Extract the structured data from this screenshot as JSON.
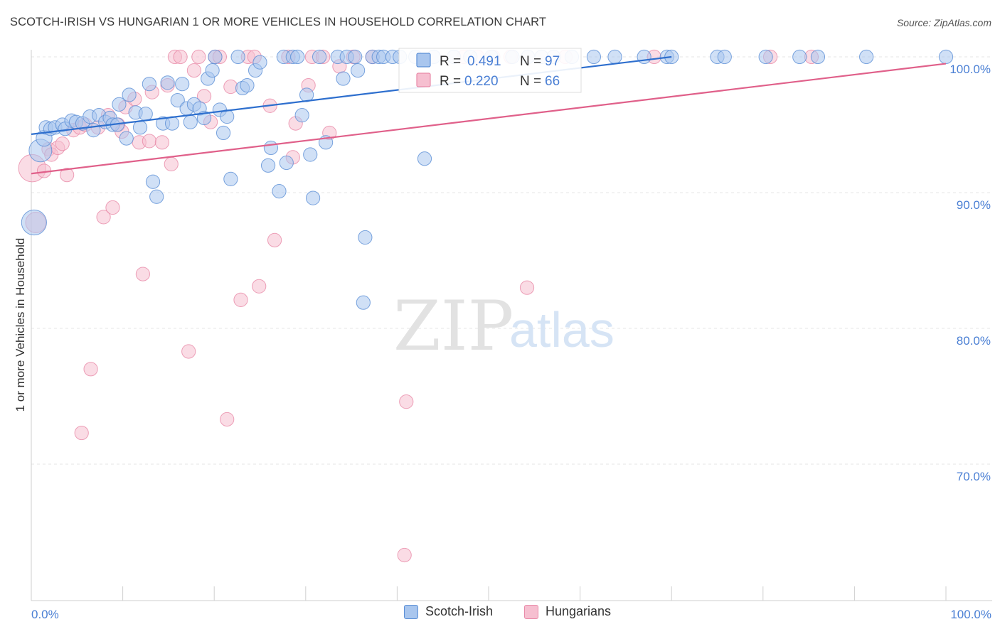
{
  "header": {
    "title": "SCOTCH-IRISH VS HUNGARIAN 1 OR MORE VEHICLES IN HOUSEHOLD CORRELATION CHART",
    "source": "Source: ZipAtlas.com"
  },
  "watermark": {
    "zip": "ZIP",
    "atlas": "atlas"
  },
  "colors": {
    "blue_fill": "#a9c6ee",
    "blue_stroke": "#5b8fd6",
    "blue_line": "#2e6fce",
    "pink_fill": "#f6bfd0",
    "pink_stroke": "#e98aa8",
    "pink_line": "#e0608a",
    "tick_text": "#4a7fd4",
    "grid": "#e6e6e6"
  },
  "legend_top": {
    "rows": [
      {
        "r_label": "R =",
        "r_value": "0.491",
        "n_label": "N =",
        "n_value": "97"
      },
      {
        "r_label": "R =",
        "r_value": "0.220",
        "n_label": "N =",
        "n_value": "66"
      }
    ]
  },
  "legend_bottom": {
    "items": [
      "Scotch-Irish",
      "Hungarians"
    ]
  },
  "chart_data": {
    "type": "scatter",
    "title": "SCOTCH-IRISH VS HUNGARIAN 1 OR MORE VEHICLES IN HOUSEHOLD CORRELATION CHART",
    "xlabel": "",
    "ylabel": "1 or more Vehicles in Household",
    "xlim": [
      0,
      100
    ],
    "ylim": [
      60,
      100.8
    ],
    "x_tick_labels": [
      "0.0%",
      "100.0%"
    ],
    "y_ticks": [
      70,
      80,
      90,
      100
    ],
    "y_tick_labels": [
      "70.0%",
      "80.0%",
      "90.0%",
      "100.0%"
    ],
    "grid": true,
    "legend_position": "top-center",
    "series": [
      {
        "name": "Scotch-Irish",
        "R": 0.491,
        "N": 97,
        "trend": {
          "x0": 0,
          "y0": 94.3,
          "x1": 70,
          "y1": 100.0
        },
        "points": [
          [
            0.3,
            87.8,
            2.2
          ],
          [
            1.0,
            93.1,
            2.0
          ],
          [
            1.4,
            94.0,
            1.4
          ],
          [
            1.6,
            94.8,
            1.2
          ],
          [
            2.1,
            94.7,
            1.2
          ],
          [
            2.6,
            94.8,
            1.2
          ],
          [
            3.4,
            95.0,
            1.2
          ],
          [
            3.7,
            94.7,
            1.2
          ],
          [
            4.4,
            95.3,
            1.2
          ],
          [
            4.9,
            95.2,
            1.2
          ],
          [
            5.6,
            95.1,
            1.2
          ],
          [
            6.4,
            95.6,
            1.2
          ],
          [
            6.8,
            94.6,
            1.2
          ],
          [
            7.4,
            95.7,
            1.2
          ],
          [
            8.1,
            95.2,
            1.2
          ],
          [
            8.6,
            95.5,
            1.2
          ],
          [
            8.9,
            95.0,
            1.2
          ],
          [
            9.4,
            95.0,
            1.2
          ],
          [
            9.6,
            96.5,
            1.2
          ],
          [
            10.4,
            94.0,
            1.2
          ],
          [
            10.7,
            97.2,
            1.2
          ],
          [
            11.4,
            95.9,
            1.2
          ],
          [
            11.9,
            94.8,
            1.2
          ],
          [
            12.5,
            95.8,
            1.2
          ],
          [
            12.9,
            98.0,
            1.2
          ],
          [
            13.3,
            90.8,
            1.2
          ],
          [
            13.7,
            89.7,
            1.2
          ],
          [
            14.4,
            95.1,
            1.2
          ],
          [
            14.9,
            98.1,
            1.2
          ],
          [
            15.4,
            95.1,
            1.2
          ],
          [
            16.0,
            96.8,
            1.2
          ],
          [
            16.5,
            98.0,
            1.2
          ],
          [
            17.0,
            96.2,
            1.2
          ],
          [
            17.4,
            95.2,
            1.2
          ],
          [
            17.8,
            96.5,
            1.2
          ],
          [
            18.4,
            96.2,
            1.2
          ],
          [
            18.9,
            95.5,
            1.2
          ],
          [
            19.3,
            98.4,
            1.2
          ],
          [
            19.8,
            99.0,
            1.2
          ],
          [
            20.1,
            100.0,
            1.2
          ],
          [
            20.6,
            96.1,
            1.2
          ],
          [
            21.0,
            94.4,
            1.2
          ],
          [
            21.4,
            95.6,
            1.2
          ],
          [
            21.8,
            91.0,
            1.2
          ],
          [
            22.6,
            100.0,
            1.2
          ],
          [
            23.1,
            97.7,
            1.2
          ],
          [
            23.6,
            97.9,
            1.2
          ],
          [
            24.5,
            99.0,
            1.2
          ],
          [
            25.0,
            99.6,
            1.2
          ],
          [
            25.9,
            92.0,
            1.2
          ],
          [
            26.2,
            93.3,
            1.2
          ],
          [
            27.1,
            90.1,
            1.2
          ],
          [
            27.6,
            100.0,
            1.2
          ],
          [
            27.9,
            92.2,
            1.2
          ],
          [
            28.6,
            100.0,
            1.2
          ],
          [
            29.1,
            100.0,
            1.2
          ],
          [
            29.6,
            95.7,
            1.2
          ],
          [
            30.1,
            97.2,
            1.2
          ],
          [
            30.5,
            92.8,
            1.2
          ],
          [
            30.8,
            89.6,
            1.2
          ],
          [
            31.5,
            100.0,
            1.2
          ],
          [
            32.2,
            93.7,
            1.2
          ],
          [
            33.5,
            100.0,
            1.2
          ],
          [
            34.1,
            98.4,
            1.2
          ],
          [
            34.5,
            100.0,
            1.2
          ],
          [
            35.4,
            100.0,
            1.2
          ],
          [
            35.7,
            99.0,
            1.2
          ],
          [
            36.5,
            86.7,
            1.2
          ],
          [
            36.3,
            81.9,
            1.2
          ],
          [
            37.3,
            100.0,
            1.2
          ],
          [
            38.0,
            100.0,
            1.2
          ],
          [
            38.5,
            100.0,
            1.2
          ],
          [
            39.5,
            100.0,
            1.2
          ],
          [
            40.3,
            100.0,
            1.2
          ],
          [
            42.0,
            100.0,
            1.2
          ],
          [
            43.0,
            92.5,
            1.2
          ],
          [
            44.0,
            100.0,
            1.2
          ],
          [
            46.2,
            100.0,
            1.2
          ],
          [
            48.0,
            100.0,
            1.2
          ],
          [
            50.3,
            100.0,
            1.2
          ],
          [
            52.6,
            100.0,
            1.2
          ],
          [
            54.3,
            100.0,
            1.2
          ],
          [
            55.8,
            100.0,
            1.2
          ],
          [
            57.1,
            100.0,
            1.2
          ],
          [
            59.1,
            100.0,
            1.2
          ],
          [
            61.5,
            100.0,
            1.2
          ],
          [
            63.8,
            100.0,
            1.2
          ],
          [
            67.0,
            100.0,
            1.2
          ],
          [
            69.5,
            100.0,
            1.2
          ],
          [
            70.0,
            100.0,
            1.2
          ],
          [
            75.0,
            100.0,
            1.2
          ],
          [
            75.8,
            100.0,
            1.2
          ],
          [
            80.3,
            100.0,
            1.2
          ],
          [
            84.0,
            100.0,
            1.2
          ],
          [
            86.0,
            100.0,
            1.2
          ],
          [
            91.3,
            100.0,
            1.2
          ],
          [
            100.0,
            100.0,
            1.2
          ]
        ]
      },
      {
        "name": "Hungarians",
        "R": 0.22,
        "N": 66,
        "trend": {
          "x0": 0,
          "y0": 91.4,
          "x1": 100,
          "y1": 99.5
        },
        "points": [
          [
            0.1,
            91.8,
            2.4
          ],
          [
            0.5,
            87.8,
            1.8
          ],
          [
            1.4,
            91.6,
            1.2
          ],
          [
            1.9,
            93.2,
            1.2
          ],
          [
            2.2,
            92.8,
            1.2
          ],
          [
            2.9,
            93.3,
            1.2
          ],
          [
            3.4,
            93.6,
            1.2
          ],
          [
            3.9,
            91.3,
            1.2
          ],
          [
            4.6,
            94.6,
            1.2
          ],
          [
            5.3,
            94.8,
            1.2
          ],
          [
            5.9,
            95.0,
            1.2
          ],
          [
            6.5,
            77.0,
            1.2
          ],
          [
            5.5,
            72.3,
            1.2
          ],
          [
            7.3,
            94.8,
            1.2
          ],
          [
            7.9,
            88.2,
            1.2
          ],
          [
            8.4,
            95.7,
            1.2
          ],
          [
            8.9,
            88.9,
            1.2
          ],
          [
            9.5,
            95.0,
            1.2
          ],
          [
            9.9,
            94.5,
            1.2
          ],
          [
            10.3,
            96.3,
            1.2
          ],
          [
            11.3,
            96.9,
            1.2
          ],
          [
            11.8,
            93.7,
            1.2
          ],
          [
            12.2,
            84.0,
            1.2
          ],
          [
            12.9,
            93.8,
            1.2
          ],
          [
            13.2,
            97.4,
            1.2
          ],
          [
            14.3,
            93.7,
            1.2
          ],
          [
            14.9,
            97.9,
            1.2
          ],
          [
            15.3,
            92.1,
            1.2
          ],
          [
            15.7,
            100.0,
            1.2
          ],
          [
            16.3,
            100.0,
            1.2
          ],
          [
            17.2,
            78.3,
            1.2
          ],
          [
            17.8,
            99.0,
            1.2
          ],
          [
            18.3,
            100.0,
            1.2
          ],
          [
            18.9,
            97.1,
            1.2
          ],
          [
            19.6,
            95.2,
            1.2
          ],
          [
            20.1,
            100.0,
            1.2
          ],
          [
            20.6,
            100.0,
            1.2
          ],
          [
            21.4,
            73.3,
            1.2
          ],
          [
            21.8,
            97.8,
            1.2
          ],
          [
            22.9,
            82.1,
            1.2
          ],
          [
            23.7,
            100.0,
            1.2
          ],
          [
            24.4,
            100.0,
            1.2
          ],
          [
            24.9,
            83.1,
            1.2
          ],
          [
            26.1,
            96.4,
            1.2
          ],
          [
            26.6,
            86.5,
            1.2
          ],
          [
            28.1,
            100.0,
            1.2
          ],
          [
            28.6,
            92.6,
            1.2
          ],
          [
            28.9,
            95.1,
            1.2
          ],
          [
            30.3,
            97.9,
            1.2
          ],
          [
            30.7,
            100.0,
            1.2
          ],
          [
            31.9,
            100.0,
            1.2
          ],
          [
            32.6,
            94.4,
            1.2
          ],
          [
            33.7,
            99.3,
            1.2
          ],
          [
            35.2,
            100.0,
            1.2
          ],
          [
            37.3,
            100.0,
            1.2
          ],
          [
            41.0,
            74.6,
            1.2
          ],
          [
            40.8,
            63.3,
            1.2
          ],
          [
            47.3,
            100.0,
            1.2
          ],
          [
            48.8,
            100.0,
            1.2
          ],
          [
            50.5,
            100.0,
            1.2
          ],
          [
            52.4,
            100.0,
            1.2
          ],
          [
            54.2,
            83.0,
            1.2
          ],
          [
            58.4,
            100.0,
            1.2
          ],
          [
            68.1,
            100.0,
            1.2
          ],
          [
            80.8,
            100.0,
            1.2
          ],
          [
            85.3,
            100.0,
            1.2
          ]
        ]
      }
    ]
  }
}
